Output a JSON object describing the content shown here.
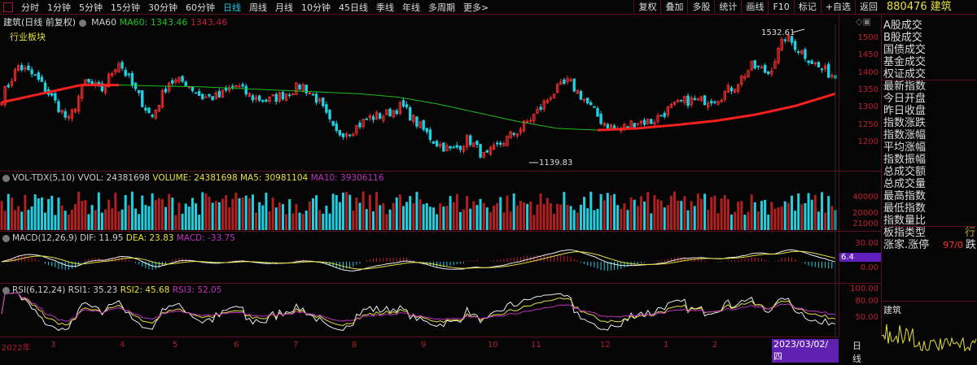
{
  "toolbar": {
    "periods": [
      "分时",
      "1分钟",
      "5分钟",
      "15分钟",
      "30分钟",
      "60分钟",
      "日线",
      "周线",
      "月线",
      "10分钟",
      "45日线",
      "季线",
      "年线",
      "多周期",
      "更多>"
    ],
    "active": "日线",
    "actions": [
      "复权",
      "叠加",
      "多股",
      "统计",
      "画线",
      "F10",
      "标记",
      "+自选",
      "返回"
    ]
  },
  "main": {
    "title": "建筑(日线 前复权)",
    "ma_name": "MA60",
    "ma_value": "MA60: 1343.46",
    "ma_value2": "1343.46",
    "sector_label": "行业板块",
    "high_label": "1532.61",
    "low_label": "1139.83",
    "price_ticks": [
      1500,
      1450,
      1400,
      1350,
      1300,
      1250,
      1200
    ]
  },
  "volume": {
    "label": "VOL-TDX(5,10)",
    "vvol": "VVOL: 24381698",
    "volume": "VOLUME: 24381698",
    "ma5": "MA5: 30981104",
    "ma10": "MA10: 39306116",
    "ticks": [
      "40000",
      "20000",
      "21000"
    ]
  },
  "macd": {
    "label": "MACD(12,26,9)",
    "dif": "DIF: 11.95",
    "dea": "DEA: 23.83",
    "macd": "MACD: -33.75",
    "ticks": [
      "30.00",
      "6.4",
      "0.00"
    ]
  },
  "rsi": {
    "label": "RSI(6,12,24)",
    "rsi1": "RSI1: 35.23",
    "rsi2": "RSI2: 45.68",
    "rsi3": "RSI3: 52.05",
    "ticks": [
      "100.00",
      "80.00",
      "50.00"
    ]
  },
  "xaxis": {
    "labels": [
      "2022年",
      "3",
      "4",
      "5",
      "6",
      "7",
      "8",
      "9",
      "10",
      "11",
      "12",
      "1",
      "2"
    ],
    "cursor_date": "2023/03/02/四",
    "period": "日线"
  },
  "right_panel": {
    "code": "880476",
    "name": "建筑",
    "items": [
      "A股成交",
      "B股成交",
      "国债成交",
      "基金成交",
      "权证成交",
      "最新指数",
      "今日开盘",
      "昨日收盘",
      "指数涨跌",
      "指数涨幅",
      "平均涨幅",
      "指数振幅",
      "总成交额",
      "总成交量",
      "最高指数",
      "最低指数",
      "指数量比",
      "板指类型",
      "涨家.涨停"
    ],
    "type_value": "行",
    "updown_value": "97/0",
    "down_label": "跌",
    "mini_chart_title": "建筑"
  },
  "colors": {
    "up": "#ff3030",
    "down": "#20d0e0",
    "ma60_up": "#ff2020",
    "ma60_down": "#20c020",
    "accent": "#1cc8e0"
  },
  "chart_data": {
    "type": "candlestick",
    "price_range": [
      1120,
      1540
    ],
    "close_waypoints": [
      1330,
      1420,
      1390,
      1330,
      1260,
      1375,
      1350,
      1435,
      1350,
      1270,
      1375,
      1375,
      1330,
      1330,
      1365,
      1330,
      1320,
      1340,
      1365,
      1320,
      1225,
      1235,
      1270,
      1280,
      1305,
      1250,
      1200,
      1175,
      1210,
      1155,
      1200,
      1235,
      1280,
      1340,
      1375,
      1320,
      1260,
      1235,
      1260,
      1260,
      1295,
      1320,
      1320,
      1330,
      1365,
      1420,
      1400,
      1505,
      1460,
      1415,
      1390
    ],
    "ma60_waypoints": [
      1315,
      1340,
      1365,
      1365,
      1362,
      1360,
      1355,
      1350,
      1345,
      1340,
      1330,
      1310,
      1285,
      1260,
      1240,
      1235,
      1240,
      1250,
      1262,
      1280,
      1305,
      1340
    ]
  }
}
